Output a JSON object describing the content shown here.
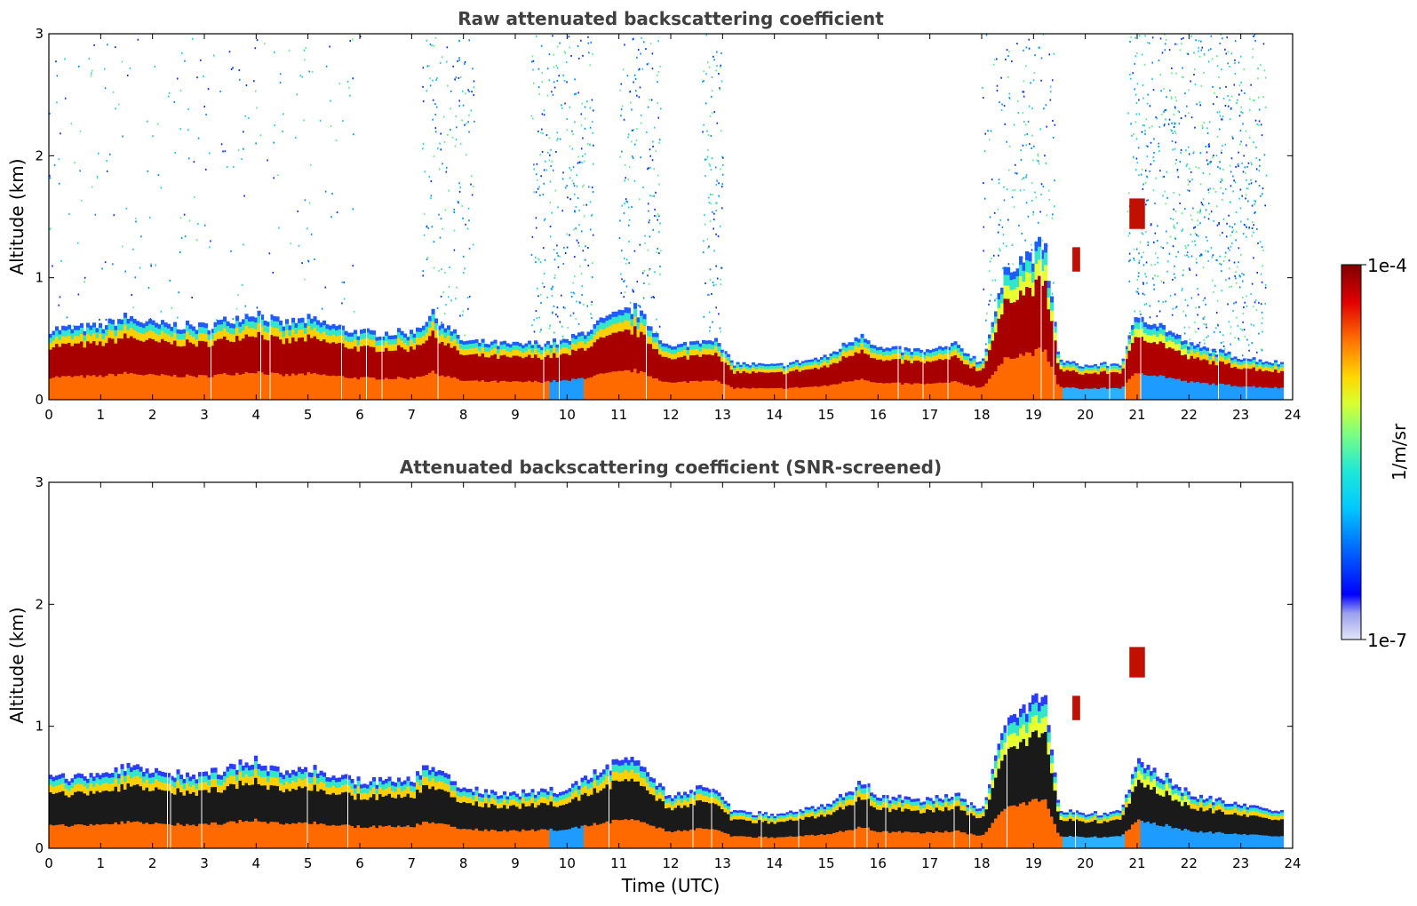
{
  "chart_data": [
    {
      "type": "heatmap",
      "title": "Raw attenuated backscattering coefficient",
      "xlabel": "",
      "ylabel": "Altitude (km)",
      "xlim": [
        0,
        24
      ],
      "ylim": [
        0,
        3
      ],
      "x_ticks": [
        "0",
        "1",
        "2",
        "3",
        "4",
        "5",
        "6",
        "7",
        "8",
        "9",
        "10",
        "11",
        "12",
        "13",
        "14",
        "15",
        "16",
        "17",
        "18",
        "19",
        "20",
        "21",
        "22",
        "23",
        "24"
      ],
      "y_ticks": [
        "0",
        "1",
        "2",
        "3"
      ],
      "boundary_layer_top_km": [
        [
          0,
          0.58
        ],
        [
          1,
          0.6
        ],
        [
          1.5,
          0.68
        ],
        [
          2,
          0.62
        ],
        [
          3,
          0.6
        ],
        [
          4,
          0.72
        ],
        [
          4.5,
          0.62
        ],
        [
          5,
          0.66
        ],
        [
          6,
          0.55
        ],
        [
          7,
          0.55
        ],
        [
          7.4,
          0.7
        ],
        [
          8,
          0.48
        ],
        [
          9,
          0.45
        ],
        [
          10,
          0.48
        ],
        [
          10.7,
          0.65
        ],
        [
          11.3,
          0.75
        ],
        [
          12,
          0.42
        ],
        [
          12.8,
          0.52
        ],
        [
          13.2,
          0.3
        ],
        [
          14,
          0.28
        ],
        [
          15,
          0.35
        ],
        [
          15.7,
          0.55
        ],
        [
          16,
          0.42
        ],
        [
          17,
          0.4
        ],
        [
          17.5,
          0.45
        ],
        [
          18,
          0.3
        ],
        [
          18.5,
          1.1
        ],
        [
          19,
          1.2
        ],
        [
          19.2,
          1.3
        ],
        [
          19.5,
          0.32
        ],
        [
          20,
          0.28
        ],
        [
          20.7,
          0.3
        ],
        [
          21,
          0.7
        ],
        [
          21.5,
          0.6
        ],
        [
          22,
          0.45
        ],
        [
          22.5,
          0.4
        ],
        [
          23,
          0.35
        ],
        [
          23.8,
          0.3
        ]
      ],
      "elevated_layers": [
        {
          "x": [
            19.75,
            19.9
          ],
          "y_km": [
            1.05,
            1.25
          ]
        },
        {
          "x": [
            20.85,
            21.15
          ],
          "y_km": [
            1.4,
            1.65
          ]
        }
      ],
      "data_extent_x": [
        0,
        23.8
      ]
    },
    {
      "type": "heatmap",
      "title": "Attenuated backscattering coefficient (SNR-screened)",
      "xlabel": "Time (UTC)",
      "ylabel": "Altitude (km)",
      "xlim": [
        0,
        24
      ],
      "ylim": [
        0,
        3
      ],
      "x_ticks": [
        "0",
        "1",
        "2",
        "3",
        "4",
        "5",
        "6",
        "7",
        "8",
        "9",
        "10",
        "11",
        "12",
        "13",
        "14",
        "15",
        "16",
        "17",
        "18",
        "19",
        "20",
        "21",
        "22",
        "23",
        "24"
      ],
      "y_ticks": [
        "0",
        "1",
        "2",
        "3"
      ],
      "data_extent_x": [
        0,
        23.8
      ]
    }
  ],
  "colorbar": {
    "label": "1/m/sr",
    "max_label": "1e-4",
    "min_label": "1e-7",
    "scale": "log",
    "colors": [
      "#dde0f5",
      "#b7bbee",
      "#8f94ea",
      "#0010ff",
      "#0064ff",
      "#00b4ff",
      "#19e6e0",
      "#4dff9f",
      "#b0ff4a",
      "#ffe400",
      "#ff9a00",
      "#ff3c00",
      "#d90000",
      "#7f0000"
    ]
  }
}
